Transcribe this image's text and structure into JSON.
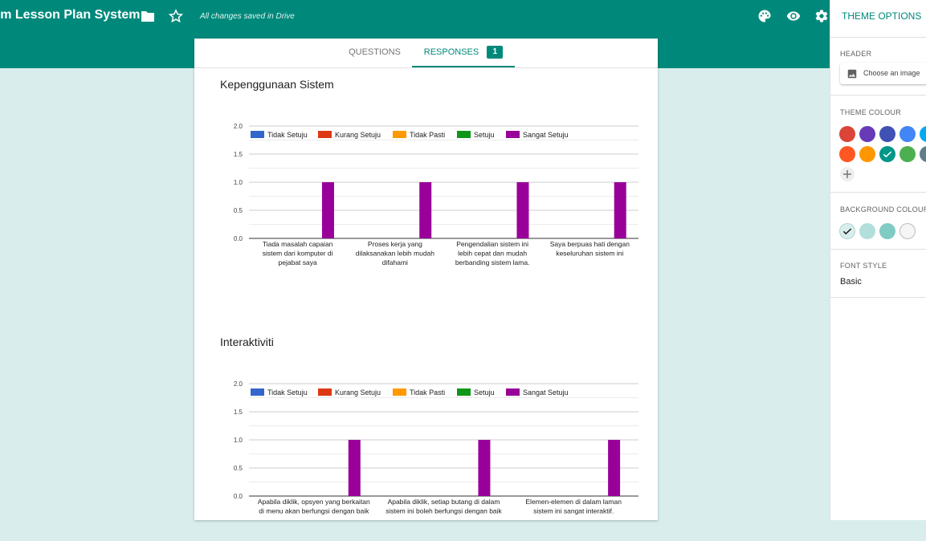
{
  "app": {
    "title": "rm Lesson Plan System",
    "save_status": "All changes saved in Drive"
  },
  "tabs": [
    {
      "label": "QUESTIONS"
    },
    {
      "label": "RESPONSES",
      "badge": "1"
    }
  ],
  "sections": [
    {
      "title": "Kepenggunaan Sistem"
    },
    {
      "title": "Interaktiviti"
    }
  ],
  "chart_data": [
    {
      "type": "bar",
      "title": "Kepenggunaan Sistem",
      "categories": [
        [
          "Tiada masalah capaian",
          "sistem dari komputer di",
          "pejabat saya"
        ],
        [
          "Proses kerja yang",
          "dilaksanakan lebih mudah",
          "difahami"
        ],
        [
          "Pengendalian sistem ini",
          "lebih cepat dan mudah",
          "berbanding sistem lama."
        ],
        [
          "Saya berpuas hati dengan",
          "keseluruhan sistem ini"
        ]
      ],
      "series": [
        {
          "name": "Tidak Setuju",
          "color": "#3366cc",
          "values": [
            0,
            0,
            0,
            0
          ]
        },
        {
          "name": "Kurang Setuju",
          "color": "#dc3912",
          "values": [
            0,
            0,
            0,
            0
          ]
        },
        {
          "name": "Tidak Pasti",
          "color": "#ff9900",
          "values": [
            0,
            0,
            0,
            0
          ]
        },
        {
          "name": "Setuju",
          "color": "#109618",
          "values": [
            0,
            0,
            0,
            0
          ]
        },
        {
          "name": "Sangat Setuju",
          "color": "#990099",
          "values": [
            1,
            1,
            1,
            1
          ]
        }
      ],
      "ylim": [
        0,
        2
      ],
      "yticks": [
        "0.0",
        "0.5",
        "1.0",
        "1.5",
        "2.0"
      ],
      "grid": true,
      "legend": "top"
    },
    {
      "type": "bar",
      "title": "Interaktiviti",
      "categories": [
        [
          "Apabila diklik, opsyen yang berkaitan",
          "di menu akan berfungsi dengan baik"
        ],
        [
          "Apabila diklik, setiap butang di dalam",
          "sistem ini boleh berfungsi dengan baik"
        ],
        [
          "Elemen-elemen di dalam laman",
          "sistem ini sangat interaktif."
        ]
      ],
      "series": [
        {
          "name": "Tidak Setuju",
          "color": "#3366cc",
          "values": [
            0,
            0,
            0
          ]
        },
        {
          "name": "Kurang Setuju",
          "color": "#dc3912",
          "values": [
            0,
            0,
            0
          ]
        },
        {
          "name": "Tidak Pasti",
          "color": "#ff9900",
          "values": [
            0,
            0,
            0
          ]
        },
        {
          "name": "Setuju",
          "color": "#109618",
          "values": [
            0,
            0,
            0
          ]
        },
        {
          "name": "Sangat Setuju",
          "color": "#990099",
          "values": [
            1,
            1,
            1
          ]
        }
      ],
      "ylim": [
        0,
        2
      ],
      "yticks": [
        "0.0",
        "0.5",
        "1.0",
        "1.5",
        "2.0"
      ],
      "grid": true,
      "legend": "top"
    }
  ],
  "theme_panel": {
    "title": "THEME OPTIONS",
    "header_label": "HEADER",
    "choose_image": "Choose an image",
    "theme_colour_label": "THEME COLOUR",
    "theme_colours": [
      "#db4437",
      "#673ab7",
      "#3f51b5",
      "#4285f4",
      "#03a9f4",
      "#ff5722",
      "#ff9800",
      "#009688",
      "#4caf50",
      "#607d8b"
    ],
    "selected_theme_colour": "#009688",
    "background_colour_label": "BACKGROUND COLOUR",
    "background_colours": [
      "#d9eeec",
      "#b2dfdb",
      "#80cbc4",
      "#f5f5f5"
    ],
    "selected_background_colour": "#d9eeec",
    "font_style_label": "FONT STYLE",
    "font_style_value": "Basic"
  },
  "icons": [
    "folder-icon",
    "star-icon",
    "palette-icon",
    "eye-icon",
    "gear-icon",
    "image-icon",
    "check-icon",
    "plus-icon"
  ]
}
